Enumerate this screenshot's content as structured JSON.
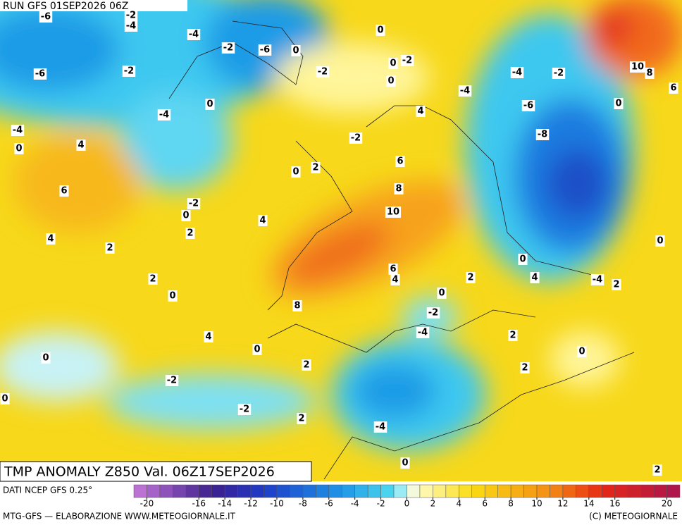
{
  "header": {
    "run": "RUN GFS 01SEP2026 06Z"
  },
  "map": {
    "title": "TMP ANOMALY Z850 Val. 06Z17SEP2026",
    "labels": [
      -6,
      -2,
      -4,
      -4,
      -2,
      -6,
      0,
      0,
      -2,
      -6,
      -2,
      -2,
      0,
      0,
      0,
      -4,
      -4,
      -4,
      -2,
      10,
      8,
      6,
      0,
      -6,
      4,
      -4,
      0,
      4,
      -2,
      -8,
      6,
      0,
      2,
      6,
      8,
      -2,
      0,
      10,
      4,
      2,
      4,
      2,
      0,
      0,
      6,
      4,
      2,
      4,
      -4,
      2,
      2,
      0,
      0,
      8,
      -2,
      -4,
      2,
      4,
      0,
      0,
      0,
      2,
      2,
      -2,
      0,
      -2,
      2,
      -4,
      0,
      2
    ]
  },
  "legend": {
    "source": "DATI NCEP GFS 0.25°",
    "ticks": [
      -20,
      -16,
      -14,
      -12,
      -10,
      -8,
      -6,
      -4,
      -2,
      0,
      2,
      4,
      6,
      8,
      10,
      12,
      14,
      16,
      20
    ]
  },
  "footer": {
    "left": "MTG-GFS — ELABORAZIONE WWW.METEOGIORNALE.IT",
    "right": "(C) METEOGIORNALE"
  }
}
